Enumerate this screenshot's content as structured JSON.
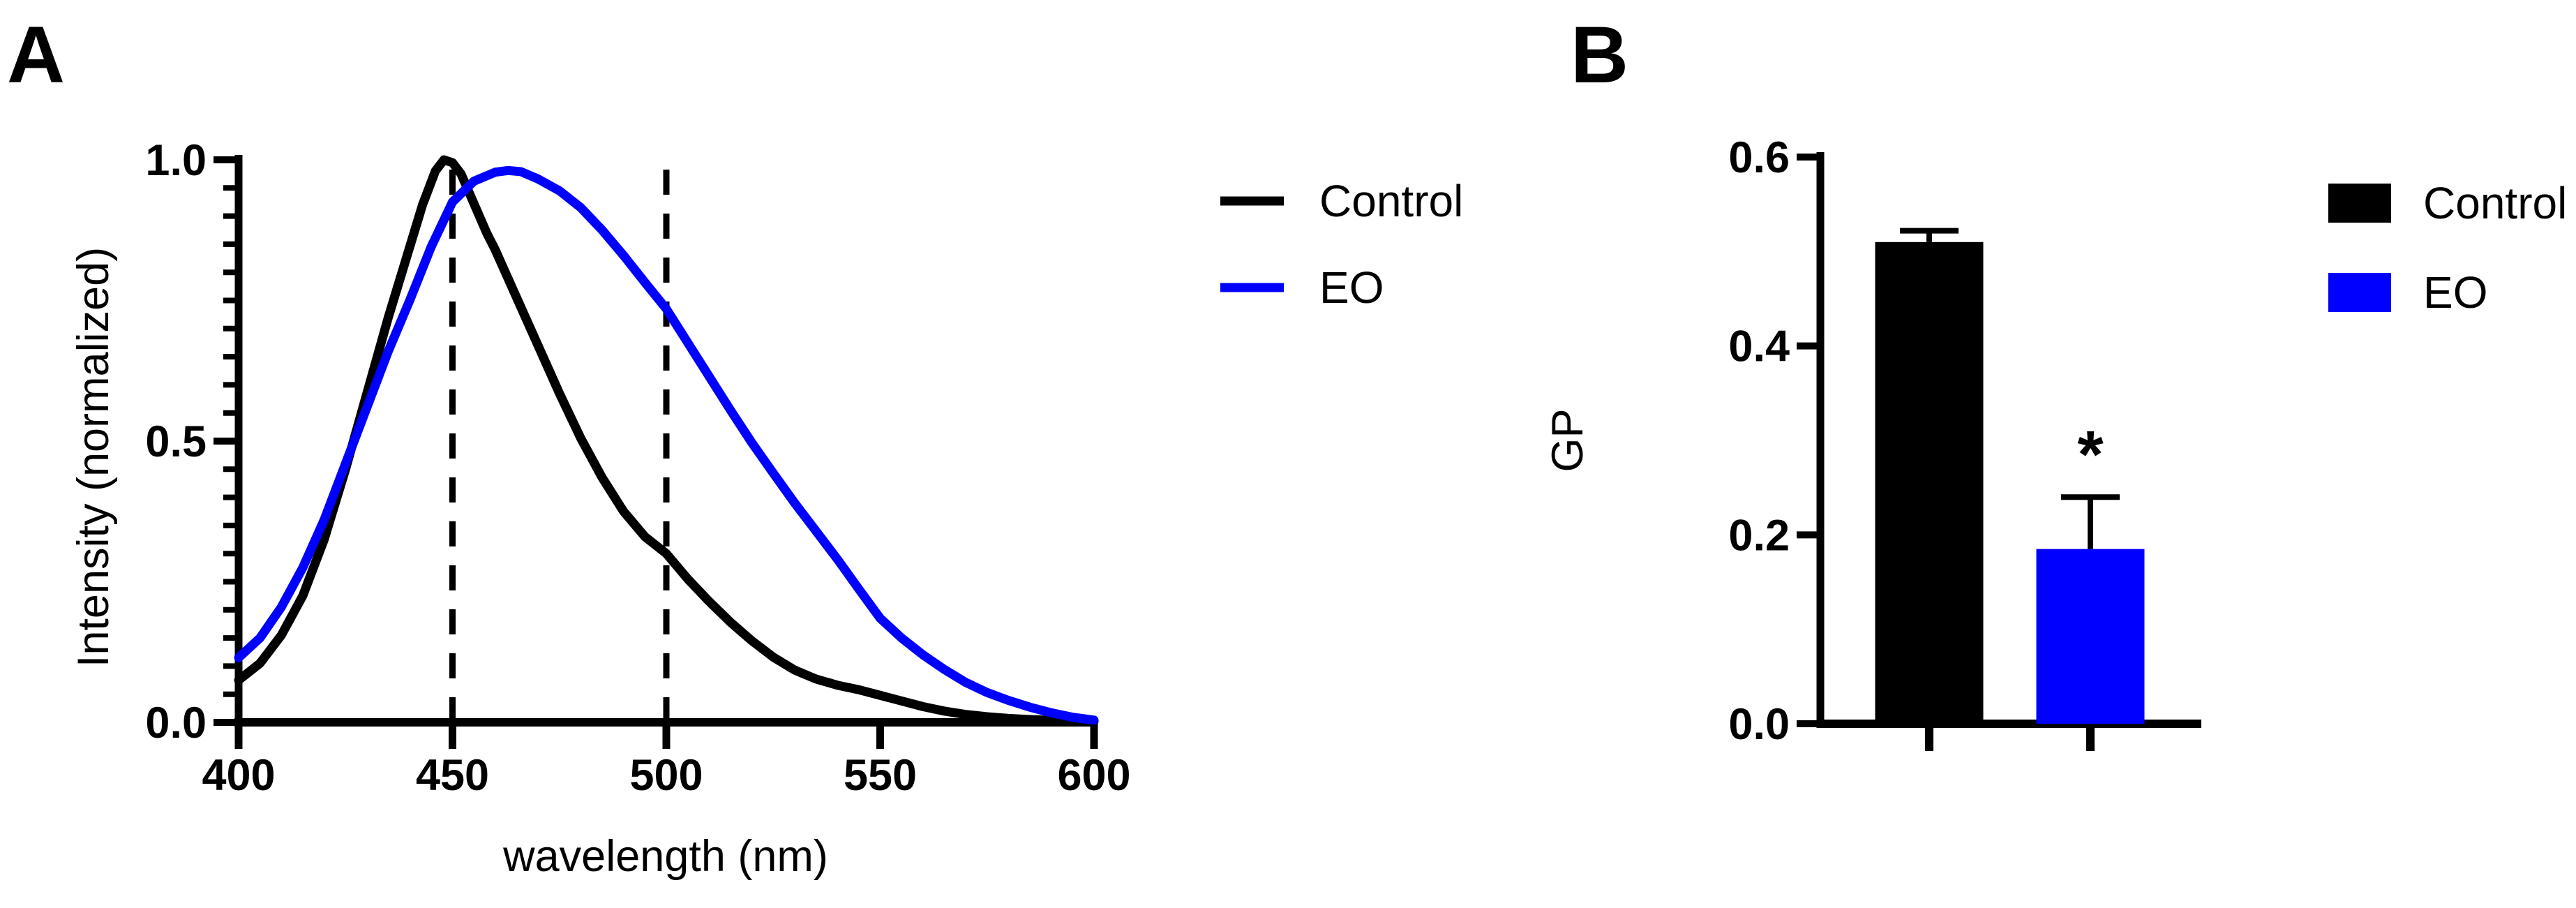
{
  "page": {
    "background": "#ffffff"
  },
  "panel_a": {
    "label": "A"
  },
  "panel_b": {
    "label": "B"
  },
  "accent_colors": {
    "control": "#000000",
    "eo": "#0000ff"
  },
  "chart_data": [
    {
      "id": "emission-spectra",
      "type": "line",
      "title": "",
      "xlabel": "wavelength (nm)",
      "ylabel": "Intensity (normalized)",
      "xlim": [
        400,
        600
      ],
      "ylim": [
        0.0,
        1.0
      ],
      "grid": false,
      "legend_position": "right-outside",
      "xticks": [
        {
          "v": 400,
          "label": "400"
        },
        {
          "v": 450,
          "label": "450"
        },
        {
          "v": 500,
          "label": "500"
        },
        {
          "v": 550,
          "label": "550"
        },
        {
          "v": 600,
          "label": "600"
        }
      ],
      "yticks": [
        {
          "v": 1.0,
          "label": "1.0"
        },
        {
          "v": 0.5,
          "label": "0.5"
        },
        {
          "v": 0.0,
          "label": "0.0"
        }
      ],
      "y_minor_tick_step": 0.05,
      "dashed_guides_x": [
        450,
        500
      ],
      "series": [
        {
          "name": "Control",
          "color": "#000000",
          "points": [
            [
              400,
              0.075
            ],
            [
              405,
              0.105
            ],
            [
              410,
              0.155
            ],
            [
              415,
              0.225
            ],
            [
              420,
              0.325
            ],
            [
              425,
              0.45
            ],
            [
              430,
              0.585
            ],
            [
              435,
              0.72
            ],
            [
              440,
              0.845
            ],
            [
              443,
              0.92
            ],
            [
              446,
              0.98
            ],
            [
              448,
              1.0
            ],
            [
              450,
              0.995
            ],
            [
              452,
              0.975
            ],
            [
              454,
              0.94
            ],
            [
              456,
              0.905
            ],
            [
              458,
              0.87
            ],
            [
              460,
              0.84
            ],
            [
              465,
              0.755
            ],
            [
              470,
              0.67
            ],
            [
              475,
              0.585
            ],
            [
              480,
              0.505
            ],
            [
              485,
              0.435
            ],
            [
              490,
              0.375
            ],
            [
              495,
              0.33
            ],
            [
              500,
              0.3
            ],
            [
              505,
              0.255
            ],
            [
              510,
              0.215
            ],
            [
              515,
              0.178
            ],
            [
              520,
              0.145
            ],
            [
              525,
              0.116
            ],
            [
              530,
              0.093
            ],
            [
              535,
              0.077
            ],
            [
              540,
              0.066
            ],
            [
              545,
              0.058
            ],
            [
              550,
              0.048
            ],
            [
              555,
              0.038
            ],
            [
              560,
              0.028
            ],
            [
              565,
              0.02
            ],
            [
              570,
              0.014
            ],
            [
              575,
              0.01
            ],
            [
              580,
              0.007
            ],
            [
              585,
              0.005
            ],
            [
              590,
              0.0035
            ],
            [
              595,
              0.0025
            ],
            [
              600,
              0.002
            ]
          ]
        },
        {
          "name": "EO",
          "color": "#0000ff",
          "points": [
            [
              400,
              0.115
            ],
            [
              405,
              0.15
            ],
            [
              410,
              0.205
            ],
            [
              415,
              0.275
            ],
            [
              420,
              0.36
            ],
            [
              425,
              0.46
            ],
            [
              430,
              0.56
            ],
            [
              435,
              0.66
            ],
            [
              440,
              0.75
            ],
            [
              445,
              0.845
            ],
            [
              450,
              0.925
            ],
            [
              455,
              0.962
            ],
            [
              460,
              0.978
            ],
            [
              463,
              0.981
            ],
            [
              466,
              0.979
            ],
            [
              470,
              0.966
            ],
            [
              475,
              0.945
            ],
            [
              480,
              0.915
            ],
            [
              485,
              0.875
            ],
            [
              490,
              0.83
            ],
            [
              495,
              0.782
            ],
            [
              500,
              0.735
            ],
            [
              505,
              0.675
            ],
            [
              510,
              0.615
            ],
            [
              515,
              0.555
            ],
            [
              520,
              0.497
            ],
            [
              525,
              0.443
            ],
            [
              530,
              0.39
            ],
            [
              535,
              0.34
            ],
            [
              540,
              0.29
            ],
            [
              545,
              0.237
            ],
            [
              550,
              0.185
            ],
            [
              555,
              0.15
            ],
            [
              560,
              0.12
            ],
            [
              565,
              0.094
            ],
            [
              570,
              0.071
            ],
            [
              575,
              0.053
            ],
            [
              580,
              0.039
            ],
            [
              585,
              0.027
            ],
            [
              590,
              0.017
            ],
            [
              595,
              0.009
            ],
            [
              600,
              0.004
            ]
          ]
        }
      ]
    },
    {
      "id": "gp-bars",
      "type": "bar",
      "title": "",
      "xlabel": "",
      "ylabel": "GP",
      "ylim": [
        0.0,
        0.6
      ],
      "grid": false,
      "legend_position": "right-outside",
      "yticks": [
        {
          "v": 0.0,
          "label": "0.0"
        },
        {
          "v": 0.2,
          "label": "0.2"
        },
        {
          "v": 0.4,
          "label": "0.4"
        },
        {
          "v": 0.6,
          "label": "0.6"
        }
      ],
      "categories": [
        "Control",
        "EO"
      ],
      "values": [
        0.51,
        0.185
      ],
      "errors_plus": [
        0.012,
        0.055
      ],
      "colors": [
        "#000000",
        "#0000ff"
      ],
      "significance": {
        "category": "EO",
        "label": "*"
      }
    }
  ]
}
